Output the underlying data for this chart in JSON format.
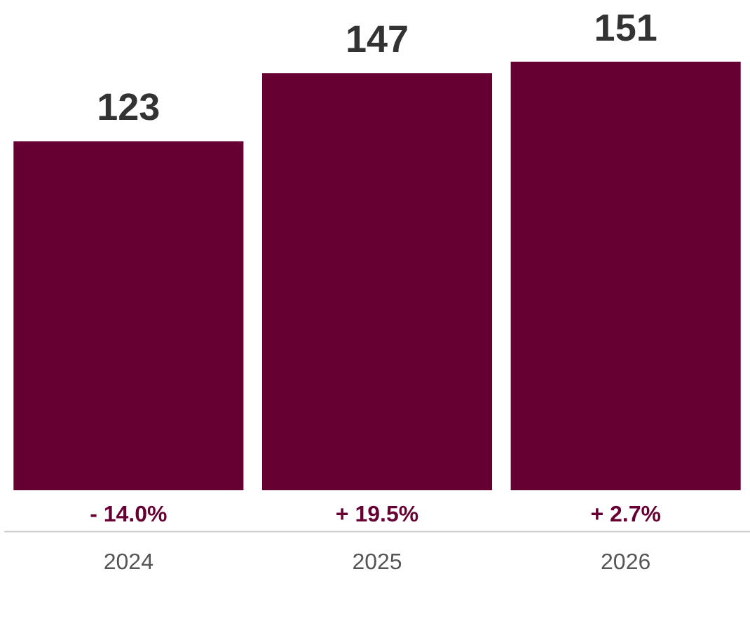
{
  "chart_data": {
    "type": "bar",
    "categories": [
      "2024",
      "2025",
      "2026"
    ],
    "series": [
      {
        "color": "#660033",
        "values": [
          123,
          147,
          151
        ]
      }
    ],
    "data_labels": true,
    "grid": false,
    "legend": false,
    "annotations": [
      "- 14.0%",
      "+ 19.5%",
      "+ 2.7%"
    ]
  }
}
